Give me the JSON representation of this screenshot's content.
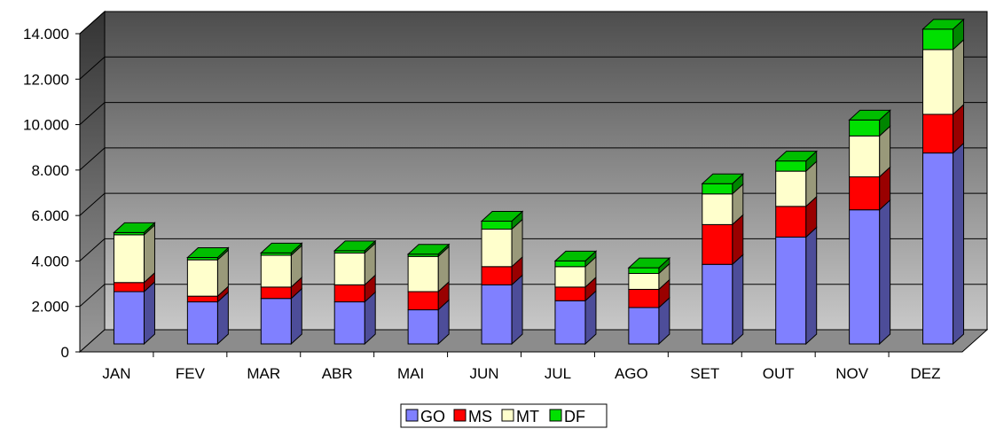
{
  "chart_data": {
    "type": "bar",
    "stacked": true,
    "three_d": true,
    "title": "",
    "xlabel": "",
    "ylabel": "",
    "ylim": [
      0,
      14000
    ],
    "y_ticks": [
      0,
      2000,
      4000,
      6000,
      8000,
      10000,
      12000,
      14000
    ],
    "y_tick_labels": [
      "0",
      "2.000",
      "4.000",
      "6.000",
      "8.000",
      "10.000",
      "12.000",
      "14.000"
    ],
    "grid": true,
    "legend_position": "bottom-center",
    "categories": [
      "JAN",
      "FEV",
      "MAR",
      "ABR",
      "MAI",
      "JUN",
      "JUL",
      "AGO",
      "SET",
      "OUT",
      "NOV",
      "DEZ"
    ],
    "series": [
      {
        "name": "GO",
        "color": "#8080ff",
        "values": [
          2300,
          1850,
          2000,
          1850,
          1500,
          2600,
          1900,
          1600,
          3500,
          4700,
          5900,
          8400
        ]
      },
      {
        "name": "MS",
        "color": "#ff0000",
        "values": [
          400,
          250,
          500,
          750,
          800,
          800,
          600,
          800,
          1750,
          1350,
          1450,
          1700
        ]
      },
      {
        "name": "MT",
        "color": "#ffffcc",
        "values": [
          2100,
          1600,
          1400,
          1400,
          1550,
          1650,
          900,
          700,
          1350,
          1550,
          1800,
          2850
        ]
      },
      {
        "name": "DF",
        "color": "#00e000",
        "values": [
          100,
          100,
          100,
          100,
          100,
          350,
          250,
          250,
          450,
          450,
          700,
          900
        ]
      }
    ]
  }
}
